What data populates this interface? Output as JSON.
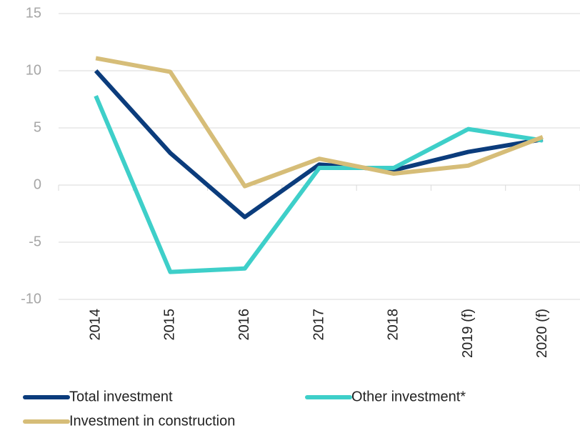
{
  "chart_data": {
    "type": "line",
    "categories": [
      "2014",
      "2015",
      "2016",
      "2017",
      "2018",
      "2019 (f)",
      "2020 (f)"
    ],
    "series": [
      {
        "name": "Total investment",
        "color": "#0b3c7c",
        "values": [
          10,
          2.8,
          -2.8,
          1.8,
          1.3,
          2.9,
          4.0
        ]
      },
      {
        "name": "Other investment*",
        "color": "#3ecfc9",
        "values": [
          7.8,
          -7.6,
          -7.3,
          1.5,
          1.5,
          4.9,
          3.9
        ]
      },
      {
        "name": "Investment in construction",
        "color": "#d6bd78",
        "values": [
          11.1,
          9.9,
          -0.1,
          2.3,
          1.0,
          1.7,
          4.2
        ]
      }
    ],
    "ylim": [
      -10,
      15
    ],
    "yticks": [
      -10,
      -5,
      0,
      5,
      10,
      15
    ],
    "grid": true
  }
}
